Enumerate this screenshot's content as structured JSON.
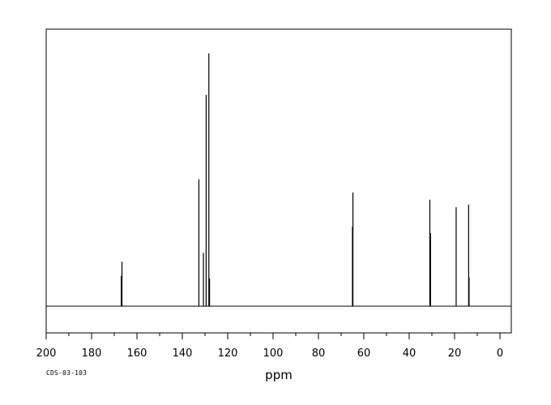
{
  "chart_data": {
    "type": "line",
    "title": "",
    "xlabel": "ppm",
    "ylabel": "",
    "xlim": [
      200,
      -5
    ],
    "x_reversed": true,
    "xticks": [
      200,
      180,
      160,
      140,
      120,
      100,
      80,
      60,
      40,
      20,
      0
    ],
    "xtick_labels": [
      "200",
      "180",
      "160",
      "140",
      "120",
      "100",
      "80",
      "60",
      "40",
      "20",
      "0"
    ],
    "ylim": [
      0,
      100
    ],
    "grid": false,
    "legend": "none",
    "peaks": [
      {
        "ppm": 166.6,
        "height": 17.6
      },
      {
        "ppm": 166.9,
        "height": 12.0
      },
      {
        "ppm": 132.7,
        "height": 50.2
      },
      {
        "ppm": 130.7,
        "height": 21.1
      },
      {
        "ppm": 129.5,
        "height": 83.6
      },
      {
        "ppm": 128.3,
        "height": 100.0
      },
      {
        "ppm": 128.0,
        "height": 11.0
      },
      {
        "ppm": 64.8,
        "height": 45.0
      },
      {
        "ppm": 65.0,
        "height": 31.5
      },
      {
        "ppm": 30.9,
        "height": 42.1
      },
      {
        "ppm": 30.6,
        "height": 28.9
      },
      {
        "ppm": 19.3,
        "height": 39.2
      },
      {
        "ppm": 13.8,
        "height": 40.2
      },
      {
        "ppm": 13.6,
        "height": 11.3
      }
    ],
    "line_color": "#000000"
  },
  "footnote": "CDS-03-103"
}
